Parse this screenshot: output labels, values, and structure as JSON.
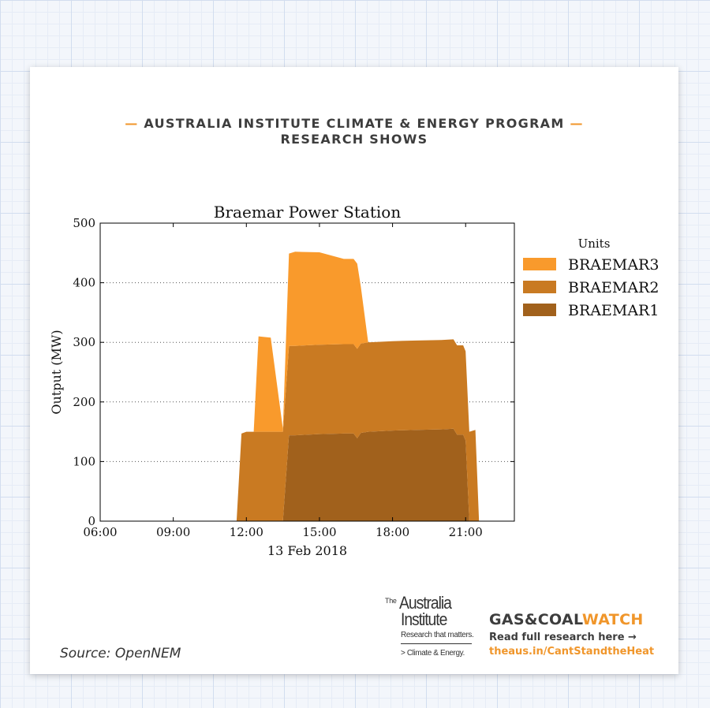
{
  "header": {
    "line1": "AUSTRALIA INSTITUTE CLIMATE & ENERGY PROGRAM",
    "line2": "RESEARCH SHOWS",
    "dash": "—"
  },
  "source": "Source: OpenNEM",
  "logo": {
    "the": "The",
    "name_line1": "Australia",
    "name_line2": "Institute",
    "tagline": "Research that matters.",
    "program": "> Climate & Energy."
  },
  "campaign": {
    "brand_part1": "GAS&COAL",
    "brand_part2": "WATCH",
    "read_more": "Read full research here →",
    "url": "theaus.in/CantStandtheHeat"
  },
  "colors": {
    "accent": "#f0962b",
    "braemar3": "#f99a2c",
    "braemar2": "#c97a22",
    "braemar1": "#a1611c"
  },
  "chart_data": {
    "type": "area",
    "title": "Braemar Power Station",
    "xlabel": "13 Feb 2018",
    "ylabel": "Output (MW)",
    "legend_title": "Units",
    "legend_position": "right",
    "xlim": [
      6,
      23
    ],
    "ylim": [
      0,
      500
    ],
    "xticks": [
      6,
      9,
      12,
      15,
      18,
      21
    ],
    "xtick_labels": [
      "06:00",
      "09:00",
      "12:00",
      "15:00",
      "18:00",
      "21:00"
    ],
    "yticks": [
      0,
      100,
      200,
      300,
      400,
      500
    ],
    "grid": "horizontal dotted",
    "legend_order": [
      "BRAEMAR3",
      "BRAEMAR2",
      "BRAEMAR1"
    ],
    "series": [
      {
        "name": "BRAEMAR1",
        "color": "#a1611c",
        "points": [
          [
            6,
            0
          ],
          [
            13.5,
            0
          ],
          [
            13.75,
            144
          ],
          [
            14,
            144
          ],
          [
            15,
            146
          ],
          [
            16,
            147
          ],
          [
            16.4,
            147
          ],
          [
            16.55,
            139
          ],
          [
            16.7,
            148
          ],
          [
            17,
            150
          ],
          [
            18,
            152
          ],
          [
            19,
            153
          ],
          [
            20,
            154
          ],
          [
            20.5,
            155
          ],
          [
            20.65,
            145
          ],
          [
            20.9,
            145
          ],
          [
            21,
            135
          ],
          [
            21.15,
            0
          ],
          [
            23,
            0
          ]
        ]
      },
      {
        "name": "BRAEMAR2",
        "color": "#c97a22",
        "points": [
          [
            6,
            0
          ],
          [
            11.6,
            0
          ],
          [
            11.8,
            147
          ],
          [
            12,
            150
          ],
          [
            13,
            150
          ],
          [
            13.5,
            150
          ],
          [
            13.75,
            150
          ],
          [
            14,
            150
          ],
          [
            15,
            150
          ],
          [
            16,
            150
          ],
          [
            16.55,
            150
          ],
          [
            17,
            150
          ],
          [
            18,
            150
          ],
          [
            19,
            150
          ],
          [
            20,
            150
          ],
          [
            20.5,
            150
          ],
          [
            20.65,
            150
          ],
          [
            20.9,
            150
          ],
          [
            21,
            150
          ],
          [
            21.15,
            150
          ],
          [
            21.4,
            153
          ],
          [
            21.55,
            0
          ],
          [
            23,
            0
          ]
        ]
      },
      {
        "name": "BRAEMAR3",
        "color": "#f99a2c",
        "points": [
          [
            6,
            0
          ],
          [
            11.6,
            0
          ],
          [
            11.8,
            0
          ],
          [
            12,
            0
          ],
          [
            12.3,
            0
          ],
          [
            12.5,
            160
          ],
          [
            13,
            158
          ],
          [
            13.5,
            5
          ],
          [
            13.75,
            155
          ],
          [
            14,
            158
          ],
          [
            15,
            155
          ],
          [
            16,
            143
          ],
          [
            16.55,
            143
          ],
          [
            17,
            0
          ],
          [
            18,
            0
          ],
          [
            23,
            0
          ]
        ]
      }
    ]
  }
}
